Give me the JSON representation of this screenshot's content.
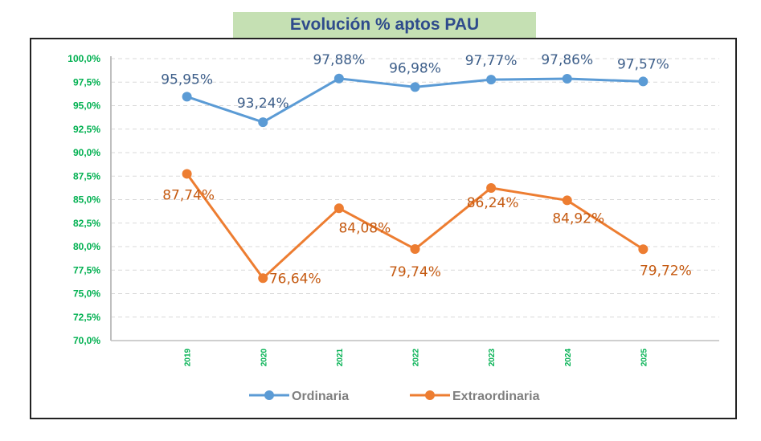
{
  "chart_data": {
    "type": "line",
    "title": "Evolución % aptos PAU",
    "categories": [
      "2019",
      "2020",
      "2021",
      "2022",
      "2023",
      "2024",
      "2025"
    ],
    "series": [
      {
        "name": "Ordinaria",
        "color": "#5b9bd5",
        "label_color": "#3e5f8a",
        "values": [
          95.95,
          93.24,
          97.88,
          96.98,
          97.77,
          97.86,
          97.57
        ],
        "labels": [
          "95,95%",
          "93,24%",
          "97,88%",
          "96,98%",
          "97,77%",
          "97,86%",
          "97,57%"
        ]
      },
      {
        "name": "Extraordinaria",
        "color": "#ed7d31",
        "label_color": "#c55a11",
        "values": [
          87.74,
          76.64,
          84.08,
          79.74,
          86.24,
          84.92,
          79.72
        ],
        "labels": [
          "87,74%",
          "76,64%",
          "84,08%",
          "79,74%",
          "86,24%",
          "84,92%",
          "79,72%"
        ]
      }
    ],
    "yticks": [
      "70,0%",
      "72,5%",
      "75,0%",
      "77,5%",
      "80,0%",
      "82,5%",
      "85,0%",
      "87,5%",
      "90,0%",
      "92,5%",
      "95,0%",
      "97,5%",
      "100,0%"
    ],
    "ylim": [
      70,
      100
    ],
    "grid": true,
    "tick_color": "#00b050",
    "legend": "bottom",
    "xlabel": "",
    "ylabel": ""
  }
}
